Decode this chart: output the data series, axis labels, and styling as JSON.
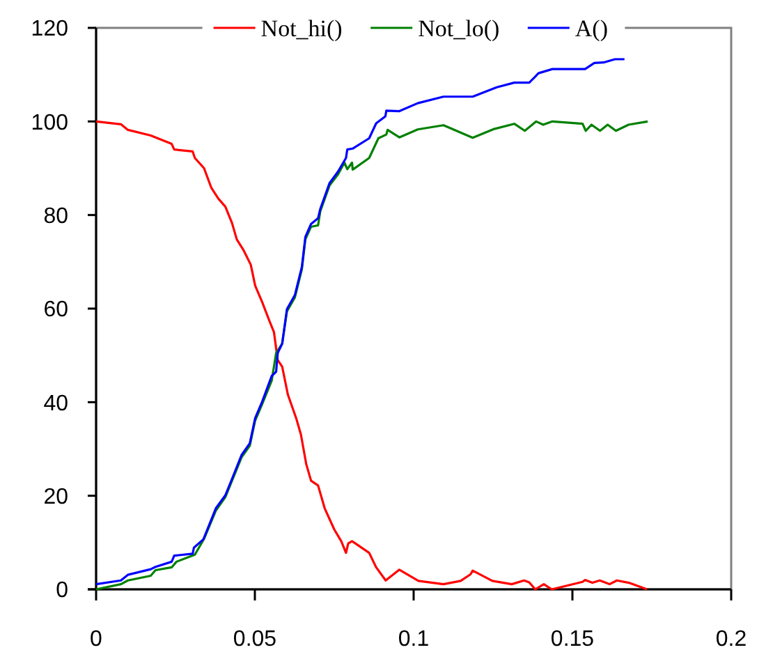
{
  "chart_data": {
    "type": "line",
    "xlim": [
      0,
      0.2
    ],
    "xticks": [
      0,
      0.05,
      0.1,
      0.15,
      0.2
    ],
    "ylim": [
      0,
      120
    ],
    "yticks": [
      0,
      20,
      40,
      60,
      80,
      100,
      120
    ],
    "legend": "top",
    "grid": false,
    "marker": "none",
    "line_style": "solid",
    "series": [
      {
        "name": "Not_hi()",
        "color": "#ff0000",
        "x": [
          0,
          0.0078,
          0.01,
          0.0172,
          0.0238,
          0.0246,
          0.0304,
          0.0311,
          0.034,
          0.0363,
          0.0385,
          0.0407,
          0.0428,
          0.0443,
          0.0465,
          0.0487,
          0.0501,
          0.0523,
          0.0545,
          0.056,
          0.0572,
          0.0586,
          0.0604,
          0.063,
          0.0645,
          0.0662,
          0.0677,
          0.0699,
          0.072,
          0.075,
          0.0772,
          0.0787,
          0.0794,
          0.0806,
          0.086,
          0.0882,
          0.0912,
          0.0955,
          0.1015,
          0.1094,
          0.1148,
          0.1179,
          0.1186,
          0.1248,
          0.1309,
          0.1348,
          0.1364,
          0.1383,
          0.141,
          0.1435,
          0.1532,
          0.154,
          0.1563,
          0.1586,
          0.1617,
          0.164,
          0.1678,
          0.1735
        ],
        "values": [
          100,
          99.4,
          98.2,
          97,
          95.2,
          94,
          93.6,
          92.2,
          90,
          85.8,
          83.5,
          81.8,
          78.3,
          74.8,
          72.4,
          69.4,
          64.9,
          61.4,
          57.5,
          55,
          49,
          47.6,
          41.6,
          36.6,
          33.1,
          26.7,
          23.2,
          22.2,
          17.3,
          12.8,
          10.3,
          7.8,
          9.8,
          10.3,
          7.8,
          4.7,
          1.9,
          4.2,
          1.8,
          1.1,
          1.8,
          3.2,
          4,
          1.8,
          1.1,
          1.9,
          1.5,
          0,
          1.1,
          0,
          1.6,
          2,
          1.4,
          1.9,
          1.1,
          1.9,
          1.4,
          0
        ]
      },
      {
        "name": "Not_lo()",
        "color": "#008000",
        "x": [
          0,
          0.0078,
          0.01,
          0.0172,
          0.0187,
          0.0238,
          0.0253,
          0.0311,
          0.034,
          0.0377,
          0.0407,
          0.0428,
          0.0458,
          0.0484,
          0.0501,
          0.0523,
          0.0553,
          0.0567,
          0.0586,
          0.0601,
          0.0626,
          0.0648,
          0.0659,
          0.0677,
          0.0699,
          0.0706,
          0.0735,
          0.0762,
          0.0782,
          0.0791,
          0.0806,
          0.0808,
          0.086,
          0.0889,
          0.0914,
          0.0918,
          0.0955,
          0.1013,
          0.1094,
          0.1186,
          0.1254,
          0.1317,
          0.135,
          0.1386,
          0.1408,
          0.1437,
          0.1532,
          0.1542,
          0.156,
          0.1587,
          0.1611,
          0.1637,
          0.1677,
          0.1737
        ],
        "values": [
          0,
          1.1,
          1.9,
          2.9,
          4.1,
          4.7,
          5.9,
          7.4,
          10.8,
          16.8,
          19.7,
          23.2,
          28.2,
          30.7,
          36.1,
          39.6,
          44.6,
          50.5,
          52.5,
          59.4,
          62.4,
          68.4,
          74.8,
          77.5,
          77.8,
          80.8,
          86.3,
          88.7,
          91.2,
          89.8,
          91.2,
          89.7,
          92.2,
          96.4,
          97.2,
          98.2,
          96.6,
          98.3,
          99.2,
          96.5,
          98.4,
          99.5,
          98,
          100,
          99.3,
          100,
          99.5,
          98,
          99.3,
          98,
          99.3,
          98,
          99.3,
          100
        ]
      },
      {
        "name": "A()",
        "color": "#0000ff",
        "x": [
          0,
          0.0078,
          0.01,
          0.0172,
          0.0187,
          0.0238,
          0.0246,
          0.0304,
          0.0308,
          0.0338,
          0.0377,
          0.0407,
          0.0428,
          0.0458,
          0.0484,
          0.0501,
          0.0523,
          0.0553,
          0.0567,
          0.0572,
          0.0586,
          0.0601,
          0.0626,
          0.0648,
          0.0659,
          0.0677,
          0.0699,
          0.0706,
          0.0735,
          0.0762,
          0.0787,
          0.0791,
          0.0808,
          0.086,
          0.0882,
          0.0911,
          0.0914,
          0.0955,
          0.1013,
          0.1094,
          0.1186,
          0.1262,
          0.1317,
          0.1364,
          0.1379,
          0.1393,
          0.1437,
          0.154,
          0.1569,
          0.1598,
          0.1634,
          0.1664
        ],
        "values": [
          1.1,
          1.9,
          3.1,
          4.3,
          4.8,
          5.9,
          7.2,
          7.6,
          8.9,
          10.7,
          17.3,
          20.1,
          23.6,
          28.7,
          31.2,
          36.6,
          40.1,
          45.6,
          46.5,
          50.5,
          52.5,
          59.9,
          62.9,
          68.9,
          75.3,
          78.1,
          79.3,
          81.3,
          86.8,
          89.3,
          92.2,
          94,
          94.2,
          96.4,
          99.6,
          101.1,
          102.3,
          102.2,
          103.9,
          105.3,
          105.3,
          107.3,
          108.3,
          108.3,
          109.3,
          110.3,
          111.2,
          111.2,
          112.5,
          112.6,
          113.3,
          113.3
        ]
      }
    ]
  }
}
